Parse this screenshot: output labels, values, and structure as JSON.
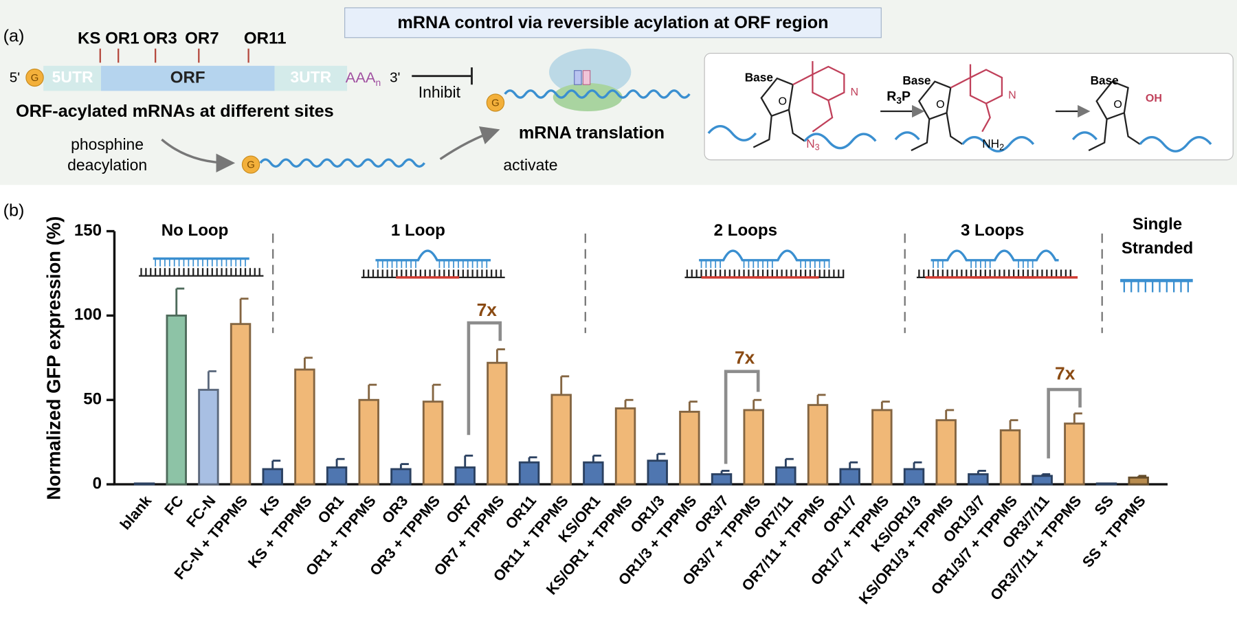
{
  "panel_a": {
    "label": "(a)",
    "title": "mRNA control via reversible acylation at ORF region",
    "sites": [
      "KS",
      "OR1",
      "OR3",
      "OR7",
      "OR11"
    ],
    "five_prime": "5'",
    "cap": "G",
    "regions": [
      "5UTR",
      "ORF",
      "3UTR"
    ],
    "polyA": "AAA",
    "polyA_sub": "n",
    "three_prime": "3'",
    "inhibit": "Inhibit",
    "acylated_label": "ORF-acylated mRNAs at different sites",
    "deacylation": [
      "phosphine",
      "deacylation"
    ],
    "activate": "activate",
    "translation": "mRNA translation",
    "chem": {
      "base": "Base",
      "reagent": "R",
      "reagent_sub": "3",
      "reagent_tail": "P",
      "azide": "N",
      "azide_sub": "3",
      "amine": "NH",
      "amine_sub": "2",
      "hydroxyl": "OH",
      "pyridine_n": "N",
      "ring_o": "O"
    }
  },
  "chart_data": {
    "type": "bar",
    "panel_label": "(b)",
    "y_label": "Normalized GFP expression (%)",
    "categories": [
      "blank",
      "FC",
      "FC-N",
      "FC-N + TPPMS",
      "KS",
      "KS + TPPMS",
      "OR1",
      "OR1 + TPPMS",
      "OR3",
      "OR3 + TPPMS",
      "OR7",
      "OR7 + TPPMS",
      "OR11",
      "OR11 + TPPMS",
      "KS/OR1",
      "KS/OR1 + TPPMS",
      "OR1/3",
      "OR1/3 + TPPMS",
      "OR3/7",
      "OR3/7 + TPPMS",
      "OR7/11",
      "OR7/11 + TPPMS",
      "OR1/7",
      "OR1/7 + TPPMS",
      "KS/OR1/3",
      "KS/OR1/3 + TPPMS",
      "OR1/3/7",
      "OR1/3/7 + TPPMS",
      "OR3/7/11",
      "OR3/7/11 + TPPMS",
      "SS",
      "SS + TPPMS"
    ],
    "values": [
      0.5,
      100,
      56,
      95,
      9,
      68,
      10,
      50,
      9,
      49,
      10,
      72,
      13,
      53,
      13,
      45,
      14,
      43,
      6,
      44,
      10,
      47,
      9,
      44,
      9,
      38,
      6,
      32,
      5,
      36,
      0.5,
      4
    ],
    "errors": [
      null,
      16,
      11,
      15,
      5,
      7,
      5,
      9,
      3,
      10,
      7,
      8,
      3,
      11,
      4,
      5,
      4,
      6,
      2,
      6,
      5,
      6,
      4,
      5,
      4,
      6,
      2,
      6,
      1,
      6,
      null,
      1
    ],
    "colors": [
      "#4f76b0",
      "#8dc3a6",
      "#a8bfe3",
      "#f0b877",
      "#4f76b0",
      "#f0b877",
      "#4f76b0",
      "#f0b877",
      "#4f76b0",
      "#f0b877",
      "#4f76b0",
      "#f0b877",
      "#4f76b0",
      "#f0b877",
      "#4f76b0",
      "#f0b877",
      "#4f76b0",
      "#f0b877",
      "#4f76b0",
      "#f0b877",
      "#4f76b0",
      "#f0b877",
      "#4f76b0",
      "#f0b877",
      "#4f76b0",
      "#f0b877",
      "#4f76b0",
      "#f0b877",
      "#4f76b0",
      "#f0b877",
      "#4f76b0",
      "#b88c4e"
    ],
    "ylim": [
      0,
      150
    ],
    "yticks": [
      0,
      50,
      100,
      150
    ],
    "groups": [
      {
        "lines": [
          "No Loop"
        ]
      },
      {
        "lines": [
          "1 Loop"
        ]
      },
      {
        "lines": [
          "2 Loops"
        ]
      },
      {
        "lines": [
          "3 Loops"
        ]
      },
      {
        "lines": [
          "Single",
          "Stranded"
        ]
      }
    ],
    "annotations": [
      "7x",
      "7x",
      "7x"
    ],
    "annotation_color": "#8a4a12"
  }
}
